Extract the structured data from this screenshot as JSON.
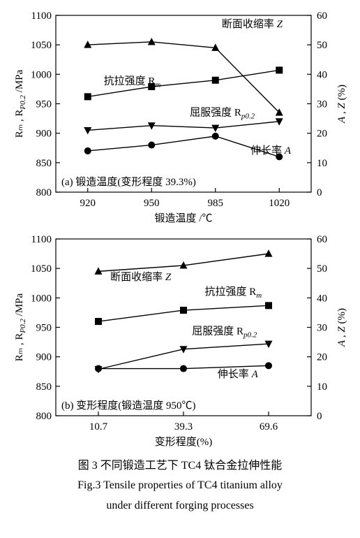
{
  "figure": {
    "caption_zh": "图 3  不同锻造工艺下 TC4 钛合金拉伸性能",
    "caption_en_1": "Fig.3  Tensile properties of TC4 titanium alloy",
    "caption_en_2": "under different forging processes",
    "colors": {
      "background": "#ffffff",
      "axis": "#000000",
      "series": "#000000",
      "marker_fill": "#000000",
      "text": "#000000"
    },
    "panel_a": {
      "type": "line",
      "panel_label": "(a) 锻造温度(变形程度 39.3%)",
      "x_label": "锻造温度 /℃",
      "y1_label": "Rₘ , R_P0.2 /MPa",
      "y2_label": "A , Z (%)",
      "x_categories": [
        920,
        950,
        985,
        1020
      ],
      "y1_lim": [
        800,
        1100
      ],
      "y1_ticks": [
        800,
        850,
        900,
        950,
        1000,
        1050,
        1100
      ],
      "y2_lim": [
        0,
        60
      ],
      "y2_ticks": [
        0,
        10,
        20,
        30,
        40,
        50,
        60
      ],
      "series": {
        "Z": {
          "label": "断面收缩率 Z",
          "marker": "triangle-up",
          "axis": "y2",
          "values": [
            50,
            51,
            49,
            27
          ],
          "label_x": 2.1,
          "label_y_ax": "y2",
          "label_y": 56
        },
        "Rm": {
          "label": "抗拉强度 Rₘ",
          "marker": "square",
          "axis": "y1",
          "values": [
            962,
            979,
            990,
            1007
          ],
          "label_x": 0.25,
          "label_y_ax": "y1",
          "label_y": 983
        },
        "Rp02": {
          "label": "屈服强度 R_p0.2",
          "marker": "triangle-down",
          "axis": "y1",
          "values": [
            905,
            913,
            909,
            920
          ],
          "label_x": 1.6,
          "label_y_ax": "y1",
          "label_y": 930
        },
        "A": {
          "label": "伸长率 A",
          "marker": "circle",
          "axis": "y2",
          "values": [
            14,
            16,
            19,
            12
          ],
          "label_x": 2.55,
          "label_y_ax": "y2",
          "label_y": 13
        }
      }
    },
    "panel_b": {
      "type": "line",
      "panel_label": "(b) 变形程度(锻造温度 950℃)",
      "x_label": "变形程度(%)",
      "y1_label": "Rₘ , R_P0.2 /MPa",
      "y2_label": "A , Z (%)",
      "x_categories": [
        10.7,
        39.3,
        69.6
      ],
      "y1_lim": [
        800,
        1100
      ],
      "y1_ticks": [
        800,
        850,
        900,
        950,
        1000,
        1050,
        1100
      ],
      "y2_lim": [
        0,
        60
      ],
      "y2_ticks": [
        0,
        10,
        20,
        30,
        40,
        50,
        60
      ],
      "series": {
        "Z": {
          "label": "断面收缩率 Z",
          "marker": "triangle-up",
          "axis": "y2",
          "values": [
            49,
            51,
            55
          ],
          "label_x": 0.14,
          "label_y_ax": "y2",
          "label_y": 46
        },
        "Rm": {
          "label": "抗拉强度 Rₘ",
          "marker": "square",
          "axis": "y1",
          "values": [
            960,
            979,
            987
          ],
          "label_x": 1.25,
          "label_y_ax": "y1",
          "label_y": 1005
        },
        "Rp02": {
          "label": "屈服强度 R_p0.2",
          "marker": "triangle-down",
          "axis": "y1",
          "values": [
            879,
            913,
            922
          ],
          "label_x": 1.1,
          "label_y_ax": "y1",
          "label_y": 938
        },
        "A": {
          "label": "伸长率 A",
          "marker": "circle",
          "axis": "y2",
          "values": [
            16,
            16,
            17
          ],
          "label_x": 1.4,
          "label_y_ax": "y2",
          "label_y": 13
        }
      }
    },
    "style": {
      "tick_fontsize": 15,
      "label_fontsize": 15,
      "caption_fontsize": 16,
      "marker_size": 5,
      "line_width": 1.4,
      "axis_width": 1.2
    }
  }
}
